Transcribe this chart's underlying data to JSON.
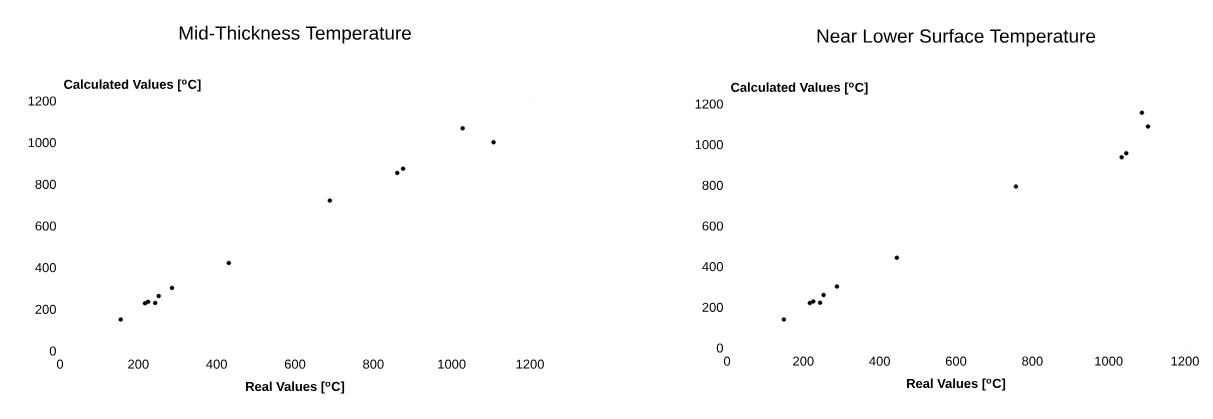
{
  "chart_data": [
    {
      "type": "scatter",
      "title": "Mid-Thickness Temperature",
      "xlabel": "Real Values [$^{o}$C]",
      "ylabel": "Calculated Values [$^{o}$C]",
      "color": "#000000",
      "grid": false,
      "x": [
        155,
        217,
        225,
        243,
        252,
        286,
        431,
        689,
        861,
        876,
        1028,
        1107
      ],
      "values": [
        151,
        229,
        236,
        231,
        264,
        303,
        423,
        722,
        855,
        875,
        1069,
        1002
      ],
      "xlim": [
        0,
        1200
      ],
      "ylim": [
        0,
        1200
      ],
      "xticks": [
        0,
        200,
        400,
        600,
        800,
        1000,
        1200
      ],
      "yticks": [
        0,
        200,
        400,
        600,
        800,
        1000,
        1200
      ]
    },
    {
      "type": "scatter",
      "title": "Near Lower Surface Temperature",
      "xlabel": "Real Values [$^{o}$C]",
      "ylabel": "Calculated Values [$^{o}$C]",
      "color": "#000000",
      "grid": false,
      "x": [
        149,
        217,
        226,
        244,
        253,
        288,
        445,
        757,
        1034,
        1046,
        1087,
        1103
      ],
      "values": [
        140,
        221,
        229,
        223,
        261,
        302,
        444,
        794,
        938,
        958,
        1157,
        1089
      ],
      "xlim": [
        0,
        1200
      ],
      "ylim": [
        0,
        1200
      ],
      "xticks": [
        0,
        200,
        400,
        600,
        800,
        1000,
        1200
      ],
      "yticks": [
        0,
        200,
        400,
        600,
        800,
        1000,
        1200
      ]
    }
  ]
}
